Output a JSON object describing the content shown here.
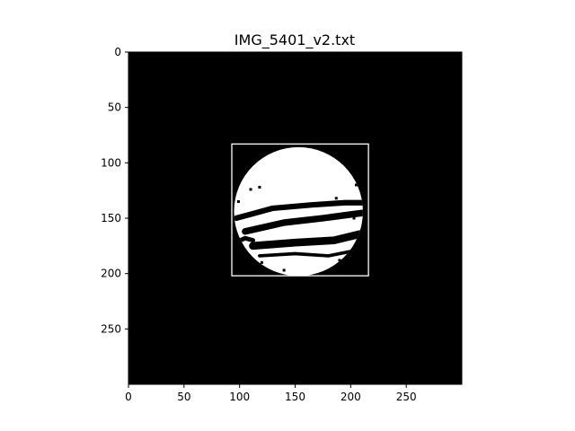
{
  "chart_data": {
    "type": "heatmap",
    "title": "IMG_5401_v2.txt",
    "xlabel": "",
    "ylabel": "",
    "xlim": [
      0,
      300
    ],
    "ylim": [
      300,
      0
    ],
    "xticks": [
      0,
      50,
      100,
      150,
      200,
      250
    ],
    "yticks": [
      0,
      50,
      100,
      150,
      200,
      250
    ],
    "grid": false,
    "colormap": {
      "background": "#000000",
      "foreground": "#ffffff"
    },
    "bounding_box": {
      "x0": 93,
      "y0": 83,
      "x1": 216,
      "y1": 202,
      "color": "#ffffff"
    },
    "object": {
      "center": [
        153,
        144
      ],
      "radius": 58,
      "dark_bands": [
        {
          "points": [
            [
              97,
              150
            ],
            [
              130,
              141
            ],
            [
              165,
              138
            ],
            [
              195,
              136
            ],
            [
              213,
              136
            ]
          ],
          "width": 5
        },
        {
          "points": [
            [
              105,
              162
            ],
            [
              140,
              154
            ],
            [
              175,
              150
            ],
            [
              205,
              146
            ],
            [
              213,
              145
            ]
          ],
          "width": 6
        },
        {
          "points": [
            [
              112,
              175
            ],
            [
              150,
              172
            ],
            [
              185,
              170
            ],
            [
              210,
              164
            ]
          ],
          "width": 7
        },
        {
          "points": [
            [
              96,
              172
            ],
            [
              105,
              168
            ],
            [
              112,
              170
            ]
          ],
          "width": 4
        },
        {
          "points": [
            [
              118,
              184
            ],
            [
              150,
              182
            ],
            [
              180,
              184
            ],
            [
              200,
              180
            ]
          ],
          "width": 3
        }
      ],
      "speckles": [
        [
          110,
          124
        ],
        [
          118,
          122
        ],
        [
          99,
          135
        ],
        [
          205,
          120
        ],
        [
          187,
          132
        ],
        [
          203,
          150
        ],
        [
          120,
          190
        ],
        [
          140,
          197
        ],
        [
          190,
          188
        ]
      ]
    }
  }
}
